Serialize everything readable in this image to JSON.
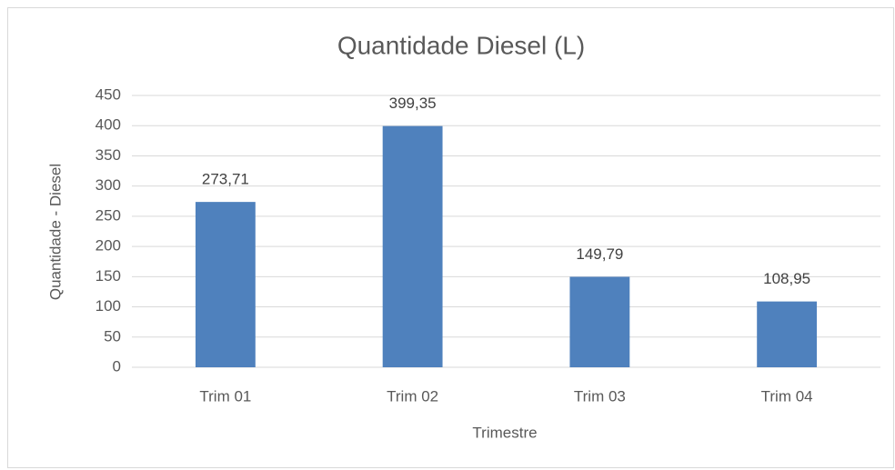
{
  "chart_data": {
    "type": "bar",
    "title": "Quantidade Diesel (L)",
    "x_label": "Trimestre",
    "y_label": "Quantidade - Diesel",
    "categories": [
      "Trim 01",
      "Trim 02",
      "Trim 03",
      "Trim 04"
    ],
    "values": [
      273.71,
      399.35,
      149.79,
      108.95
    ],
    "value_labels": [
      "273,71",
      "399,35",
      "149,79",
      "108,95"
    ],
    "color": "#4f81bd",
    "ylim": [
      0,
      450
    ],
    "yticks": [
      0,
      50,
      100,
      150,
      200,
      250,
      300,
      350,
      400,
      450
    ],
    "grid": true
  }
}
